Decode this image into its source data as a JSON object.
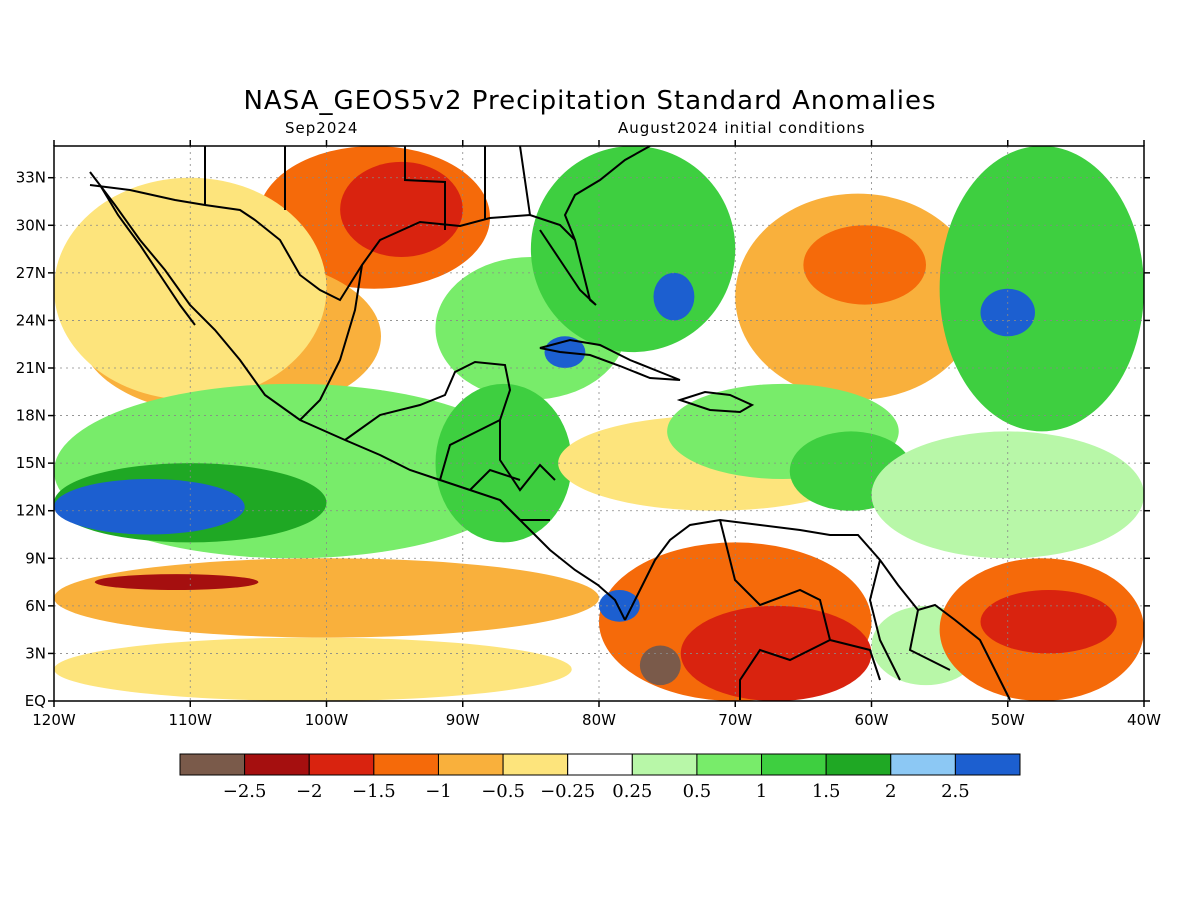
{
  "title": "NASA_GEOS5v2 Precipitation Standard Anomalies",
  "subtitle_left": "Sep2024",
  "subtitle_right": "August2024 initial conditions",
  "map": {
    "lon_range": [
      -120,
      -40
    ],
    "lat_range": [
      0,
      35
    ],
    "lat_ticks": [
      {
        "lat": 33,
        "label": "33N"
      },
      {
        "lat": 30,
        "label": "30N"
      },
      {
        "lat": 27,
        "label": "27N"
      },
      {
        "lat": 24,
        "label": "24N"
      },
      {
        "lat": 21,
        "label": "21N"
      },
      {
        "lat": 18,
        "label": "18N"
      },
      {
        "lat": 15,
        "label": "15N"
      },
      {
        "lat": 12,
        "label": "12N"
      },
      {
        "lat": 9,
        "label": "9N"
      },
      {
        "lat": 6,
        "label": "6N"
      },
      {
        "lat": 3,
        "label": "3N"
      },
      {
        "lat": 0,
        "label": "EQ"
      }
    ],
    "lon_ticks": [
      {
        "lon": -120,
        "label": "120W"
      },
      {
        "lon": -110,
        "label": "110W"
      },
      {
        "lon": -100,
        "label": "100W"
      },
      {
        "lon": -90,
        "label": "90W"
      },
      {
        "lon": -80,
        "label": "80W"
      },
      {
        "lon": -70,
        "label": "70W"
      },
      {
        "lon": -60,
        "label": "60W"
      },
      {
        "lon": -50,
        "label": "50W"
      },
      {
        "lon": -40,
        "label": "40W"
      }
    ],
    "grid": true,
    "background_color": "#ffffff"
  },
  "colorbar": {
    "colors": [
      "#7a5a4a",
      "#a50f0f",
      "#d9230f",
      "#f56a0a",
      "#f9b03c",
      "#fde47c",
      "#ffffff",
      "#b8f7a8",
      "#78ec6a",
      "#3ecf40",
      "#1fa824",
      "#8cc8f4",
      "#1c5fd0"
    ],
    "labels": [
      "−2.5",
      "−2",
      "−1.5",
      "−1",
      "−0.5",
      "−0.25",
      "0.25",
      "0.5",
      "1",
      "1.5",
      "2",
      "2.5"
    ]
  },
  "anomaly_regions": [
    {
      "name": "central-us-dry",
      "color": "#f56a0a",
      "lon": [
        -105,
        -88
      ],
      "lat": [
        26,
        35
      ]
    },
    {
      "name": "gulf-dry-core",
      "color": "#d9230f",
      "lon": [
        -99,
        -90
      ],
      "lat": [
        28,
        34
      ]
    },
    {
      "name": "mexico-dry",
      "color": "#f9b03c",
      "lon": [
        -118,
        -96
      ],
      "lat": [
        18,
        28
      ]
    },
    {
      "name": "baja-dry",
      "color": "#fde47c",
      "lon": [
        -120,
        -100
      ],
      "lat": [
        19,
        33
      ]
    },
    {
      "name": "gulf-of-mexico-wet",
      "color": "#78ec6a",
      "lon": [
        -92,
        -78
      ],
      "lat": [
        19,
        28
      ]
    },
    {
      "name": "florida-wet",
      "color": "#3ecf40",
      "lon": [
        -85,
        -70
      ],
      "lat": [
        22,
        35
      ]
    },
    {
      "name": "bahamas-wet-max",
      "color": "#1c5fd0",
      "lon": [
        -76,
        -73
      ],
      "lat": [
        24,
        27
      ]
    },
    {
      "name": "cuba-wet-max",
      "color": "#1c5fd0",
      "lon": [
        -84,
        -81
      ],
      "lat": [
        21,
        23
      ]
    },
    {
      "name": "central-atlantic-dry",
      "color": "#f9b03c",
      "lon": [
        -70,
        -52
      ],
      "lat": [
        19,
        32
      ]
    },
    {
      "name": "atlantic-dry-core",
      "color": "#f56a0a",
      "lon": [
        -65,
        -56
      ],
      "lat": [
        25,
        30
      ]
    },
    {
      "name": "west-atlantic-wet",
      "color": "#3ecf40",
      "lon": [
        -55,
        -40
      ],
      "lat": [
        17,
        35
      ]
    },
    {
      "name": "atlantic-wet-max",
      "color": "#1c5fd0",
      "lon": [
        -52,
        -48
      ],
      "lat": [
        23,
        26
      ]
    },
    {
      "name": "east-pacific-wet",
      "color": "#78ec6a",
      "lon": [
        -120,
        -85
      ],
      "lat": [
        9,
        20
      ]
    },
    {
      "name": "east-pacific-wet-core",
      "color": "#1fa824",
      "lon": [
        -120,
        -100
      ],
      "lat": [
        10,
        15
      ]
    },
    {
      "name": "east-pacific-wet-max",
      "color": "#1c5fd0",
      "lon": [
        -120,
        -106
      ],
      "lat": [
        10.5,
        14
      ]
    },
    {
      "name": "central-america-wet",
      "color": "#3ecf40",
      "lon": [
        -92,
        -82
      ],
      "lat": [
        10,
        20
      ]
    },
    {
      "name": "itcz-dry",
      "color": "#f9b03c",
      "lon": [
        -120,
        -80
      ],
      "lat": [
        4,
        9
      ]
    },
    {
      "name": "itcz-dry-core",
      "color": "#a50f0f",
      "lon": [
        -117,
        -105
      ],
      "lat": [
        7,
        8
      ]
    },
    {
      "name": "equatorial-pacific-dry",
      "color": "#fde47c",
      "lon": [
        -120,
        -82
      ],
      "lat": [
        0,
        4
      ]
    },
    {
      "name": "caribbean-mixed",
      "color": "#fde47c",
      "lon": [
        -83,
        -60
      ],
      "lat": [
        12,
        18
      ]
    },
    {
      "name": "caribbean-wet",
      "color": "#78ec6a",
      "lon": [
        -75,
        -58
      ],
      "lat": [
        14,
        20
      ]
    },
    {
      "name": "east-caribbean-wet",
      "color": "#3ecf40",
      "lon": [
        -66,
        -57
      ],
      "lat": [
        12,
        17
      ]
    },
    {
      "name": "colombia-dry",
      "color": "#f56a0a",
      "lon": [
        -80,
        -60
      ],
      "lat": [
        0,
        10
      ]
    },
    {
      "name": "venezuela-dry-core",
      "color": "#d9230f",
      "lon": [
        -74,
        -60
      ],
      "lat": [
        0,
        6
      ]
    },
    {
      "name": "amazon-extreme-dry",
      "color": "#7a5a4a",
      "lon": [
        -77,
        -74
      ],
      "lat": [
        1,
        3.5
      ]
    },
    {
      "name": "guiana-wet",
      "color": "#b8f7a8",
      "lon": [
        -60,
        -52
      ],
      "lat": [
        1,
        6
      ]
    },
    {
      "name": "tropical-atlantic-dry",
      "color": "#f56a0a",
      "lon": [
        -55,
        -40
      ],
      "lat": [
        0,
        9
      ]
    },
    {
      "name": "tropical-atlantic-dry-core",
      "color": "#d9230f",
      "lon": [
        -52,
        -42
      ],
      "lat": [
        3,
        7
      ]
    },
    {
      "name": "atlantic-subtropic-mixed",
      "color": "#b8f7a8",
      "lon": [
        -60,
        -40
      ],
      "lat": [
        9,
        17
      ]
    },
    {
      "name": "panama-wet-max",
      "color": "#1c5fd0",
      "lon": [
        -80,
        -77
      ],
      "lat": [
        5,
        7
      ]
    }
  ]
}
